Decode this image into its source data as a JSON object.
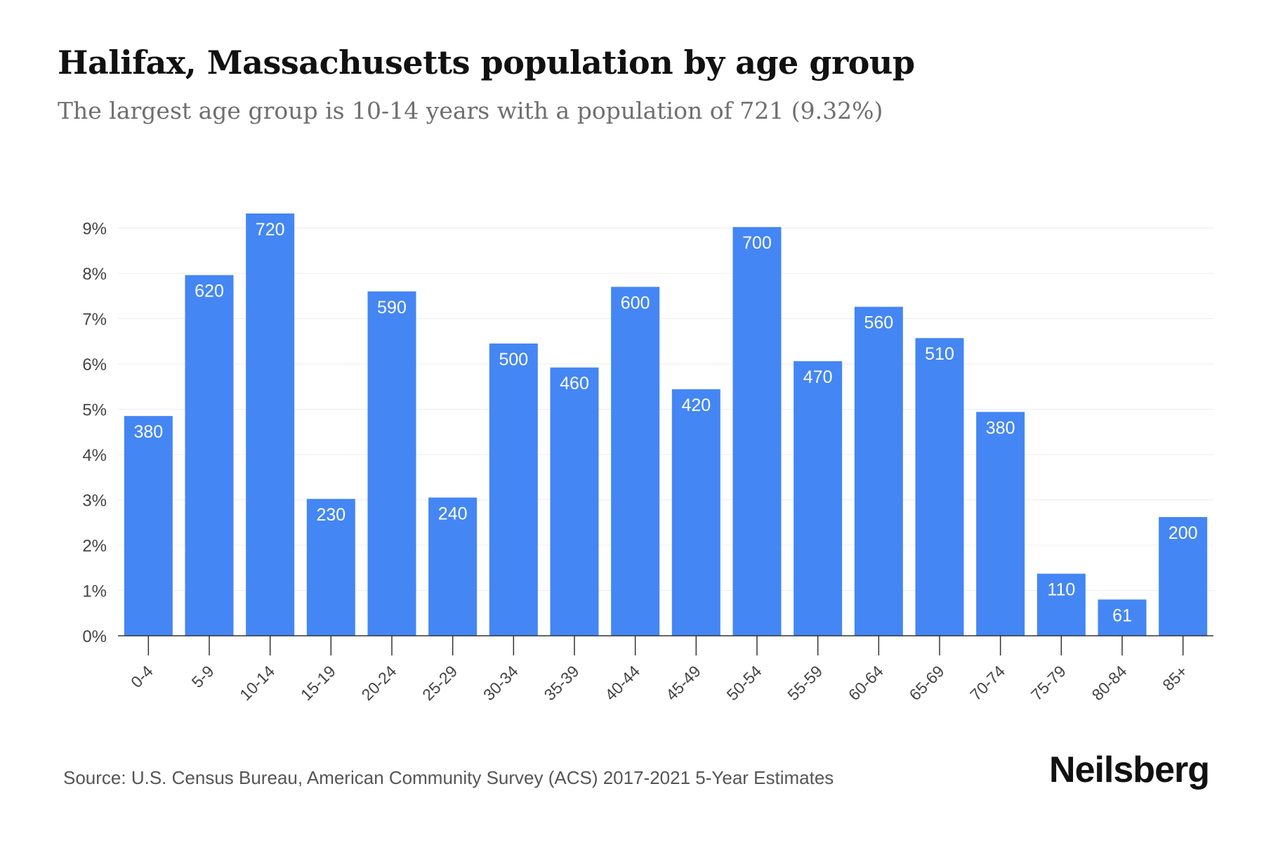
{
  "title": "Halifax, Massachusetts population by age group",
  "subtitle": "The largest age group is 10-14 years with a population of 721 (9.32%)",
  "source": "Source: U.S. Census Bureau, American Community Survey (ACS) 2017-2021 5-Year Estimates",
  "brand": "Neilsberg",
  "colors": {
    "bar": "#4486f4",
    "grid": "#ececec",
    "axis": "#333333",
    "label": "#ffffff",
    "tick_text": "#444444"
  },
  "chart_data": {
    "type": "bar",
    "categories": [
      "0-4",
      "5-9",
      "10-14",
      "15-19",
      "20-24",
      "25-29",
      "30-34",
      "35-39",
      "40-44",
      "45-49",
      "50-54",
      "55-59",
      "60-64",
      "65-69",
      "70-74",
      "75-79",
      "80-84",
      "85+"
    ],
    "values": [
      4.85,
      7.96,
      9.32,
      3.02,
      7.6,
      3.05,
      6.45,
      5.92,
      7.7,
      5.44,
      9.02,
      6.06,
      7.26,
      6.57,
      4.94,
      1.37,
      0.8,
      2.62
    ],
    "data_labels": [
      "380",
      "620",
      "720",
      "230",
      "590",
      "240",
      "500",
      "460",
      "600",
      "420",
      "700",
      "470",
      "560",
      "510",
      "380",
      "110",
      "61",
      "200"
    ],
    "y_ticks": [
      "0%",
      "1%",
      "2%",
      "3%",
      "4%",
      "5%",
      "6%",
      "7%",
      "8%",
      "9%"
    ],
    "ylim": [
      0,
      9.5
    ],
    "grid": true
  }
}
